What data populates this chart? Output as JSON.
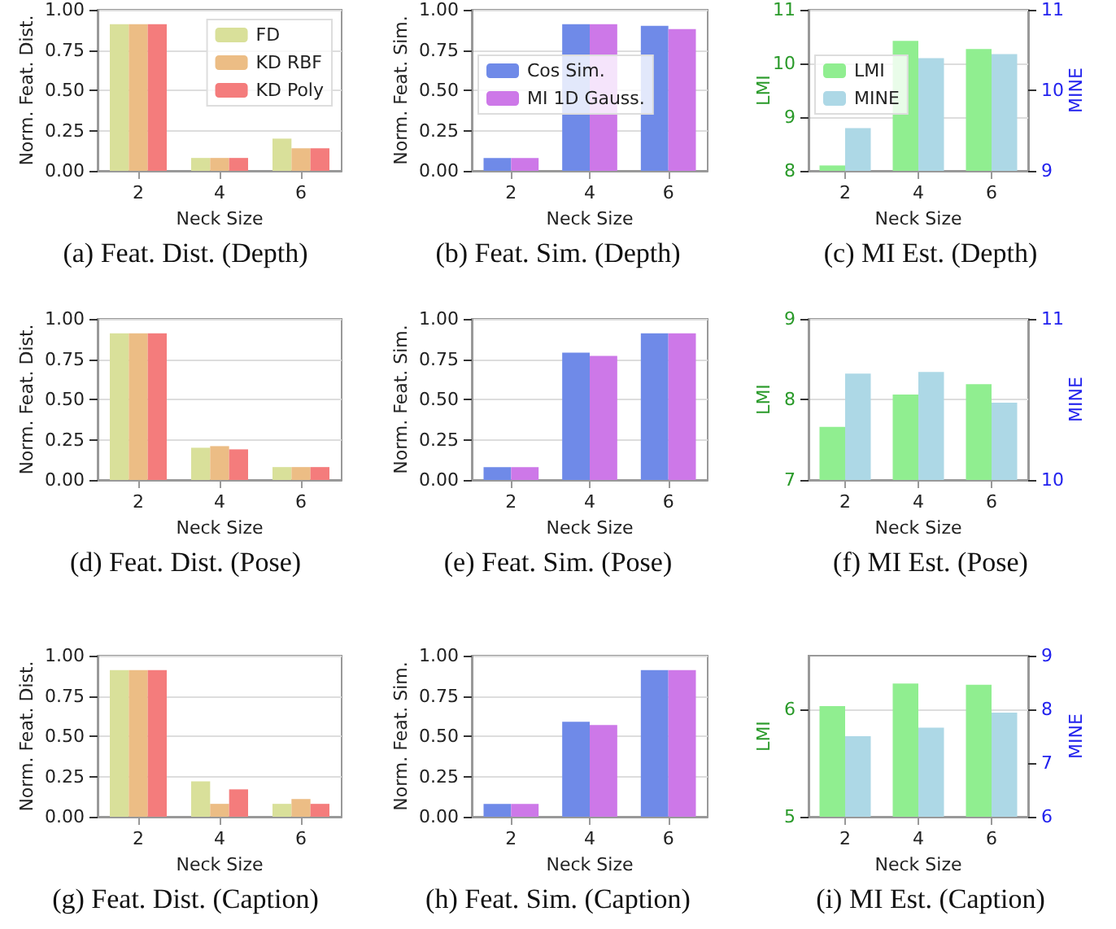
{
  "chart_data": [
    {
      "type": "bar",
      "title": "(a) Feat. Dist. (Depth)",
      "xlabel": "Neck Size",
      "ylabel": "Norm. Feat. Dist.",
      "categories": [
        "2",
        "4",
        "6"
      ],
      "legend": "top right",
      "grid": "y",
      "ylim": [
        0,
        1
      ],
      "yticks": [
        {
          "value": 0,
          "label": "0.00"
        },
        {
          "value": 0.25,
          "label": "0.25"
        },
        {
          "value": 0.5,
          "label": "0.50"
        },
        {
          "value": 0.75,
          "label": "0.75"
        },
        {
          "value": 1,
          "label": "1.00"
        }
      ],
      "series": [
        {
          "name": "FD",
          "color": "#d9e09a",
          "values": [
            0.91,
            0.08,
            0.2
          ]
        },
        {
          "name": "KD RBF",
          "color": "#ecbd85",
          "values": [
            0.91,
            0.08,
            0.14
          ]
        },
        {
          "name": "KD Poly",
          "color": "#f47c7c",
          "values": [
            0.91,
            0.08,
            0.14
          ]
        }
      ]
    },
    {
      "type": "bar",
      "title": "(b) Feat. Sim. (Depth)",
      "xlabel": "Neck Size",
      "ylabel": "Norm. Feat. Sim.",
      "categories": [
        "2",
        "4",
        "6"
      ],
      "legend": "left",
      "grid": "y",
      "ylim": [
        0,
        1
      ],
      "yticks": [
        {
          "value": 0,
          "label": "0.00"
        },
        {
          "value": 0.25,
          "label": "0.25"
        },
        {
          "value": 0.5,
          "label": "0.50"
        },
        {
          "value": 0.75,
          "label": "0.75"
        },
        {
          "value": 1,
          "label": "1.00"
        }
      ],
      "series": [
        {
          "name": "Cos Sim.",
          "color": "#6f8ae8",
          "values": [
            0.08,
            0.91,
            0.9
          ]
        },
        {
          "name": "MI 1D Gauss.",
          "color": "#cd78e8",
          "values": [
            0.08,
            0.91,
            0.88
          ]
        }
      ]
    },
    {
      "type": "bar",
      "title": "(c) MI Est. (Depth)",
      "xlabel": "Neck Size",
      "ylabel": "LMI",
      "y2label": "MINE",
      "categories": [
        "2",
        "4",
        "6"
      ],
      "legend": "left",
      "grid": "y",
      "ylim": [
        8,
        11
      ],
      "yticks": [
        8,
        9,
        10,
        11
      ],
      "y2lim": [
        9,
        11
      ],
      "y2ticks": [
        9,
        10,
        11
      ],
      "series": [
        {
          "name": "LMI",
          "color": "#90ee90",
          "values": [
            8.1,
            10.42,
            10.27
          ]
        },
        {
          "name": "MINE",
          "color": "#add8e6",
          "axis": "y2",
          "values": [
            9.53,
            10.4,
            10.45
          ]
        }
      ]
    },
    {
      "type": "bar",
      "title": "(d) Feat. Dist. (Pose)",
      "xlabel": "Neck Size",
      "ylabel": "Norm. Feat. Dist.",
      "categories": [
        "2",
        "4",
        "6"
      ],
      "grid": "y",
      "ylim": [
        0,
        1
      ],
      "yticks": [
        {
          "value": 0,
          "label": "0.00"
        },
        {
          "value": 0.25,
          "label": "0.25"
        },
        {
          "value": 0.5,
          "label": "0.50"
        },
        {
          "value": 0.75,
          "label": "0.75"
        },
        {
          "value": 1,
          "label": "1.00"
        }
      ],
      "series": [
        {
          "color": "#d9e09a",
          "values": [
            0.91,
            0.2,
            0.08
          ]
        },
        {
          "color": "#ecbd85",
          "values": [
            0.91,
            0.21,
            0.08
          ]
        },
        {
          "color": "#f47c7c",
          "values": [
            0.91,
            0.19,
            0.08
          ]
        }
      ]
    },
    {
      "type": "bar",
      "title": "(e) Feat. Sim. (Pose)",
      "xlabel": "Neck Size",
      "ylabel": "Norm. Feat. Sim.",
      "categories": [
        "2",
        "4",
        "6"
      ],
      "grid": "y",
      "ylim": [
        0,
        1
      ],
      "yticks": [
        {
          "value": 0,
          "label": "0.00"
        },
        {
          "value": 0.25,
          "label": "0.25"
        },
        {
          "value": 0.5,
          "label": "0.50"
        },
        {
          "value": 0.75,
          "label": "0.75"
        },
        {
          "value": 1,
          "label": "1.00"
        }
      ],
      "series": [
        {
          "color": "#6f8ae8",
          "values": [
            0.08,
            0.79,
            0.91
          ]
        },
        {
          "color": "#cd78e8",
          "values": [
            0.08,
            0.77,
            0.91
          ]
        }
      ]
    },
    {
      "type": "bar",
      "title": "(f) MI Est. (Pose)",
      "xlabel": "Neck Size",
      "ylabel": "LMI",
      "y2label": "MINE",
      "categories": [
        "2",
        "4",
        "6"
      ],
      "grid": "y",
      "ylim": [
        7,
        9
      ],
      "yticks": [
        7,
        8,
        9
      ],
      "y2lim": [
        10,
        11
      ],
      "y2ticks": [
        10,
        11
      ],
      "series": [
        {
          "color": "#90ee90",
          "values": [
            7.66,
            8.06,
            8.19
          ]
        },
        {
          "color": "#add8e6",
          "axis": "y2",
          "values": [
            10.66,
            10.67,
            10.48
          ]
        }
      ]
    },
    {
      "type": "bar",
      "title": "(g) Feat. Dist. (Caption)",
      "xlabel": "Neck Size",
      "ylabel": "Norm. Feat. Dist.",
      "categories": [
        "2",
        "4",
        "6"
      ],
      "grid": "y",
      "ylim": [
        0,
        1
      ],
      "yticks": [
        {
          "value": 0,
          "label": "0.00"
        },
        {
          "value": 0.25,
          "label": "0.25"
        },
        {
          "value": 0.5,
          "label": "0.50"
        },
        {
          "value": 0.75,
          "label": "0.75"
        },
        {
          "value": 1,
          "label": "1.00"
        }
      ],
      "series": [
        {
          "color": "#d9e09a",
          "values": [
            0.91,
            0.22,
            0.08
          ]
        },
        {
          "color": "#ecbd85",
          "values": [
            0.91,
            0.08,
            0.11
          ]
        },
        {
          "color": "#f47c7c",
          "values": [
            0.91,
            0.17,
            0.08
          ]
        }
      ]
    },
    {
      "type": "bar",
      "title": "(h) Feat. Sim. (Caption)",
      "xlabel": "Neck Size",
      "ylabel": "Norm. Feat. Sim.",
      "categories": [
        "2",
        "4",
        "6"
      ],
      "grid": "y",
      "ylim": [
        0,
        1
      ],
      "yticks": [
        {
          "value": 0,
          "label": "0.00"
        },
        {
          "value": 0.25,
          "label": "0.25"
        },
        {
          "value": 0.5,
          "label": "0.50"
        },
        {
          "value": 0.75,
          "label": "0.75"
        },
        {
          "value": 1,
          "label": "1.00"
        }
      ],
      "series": [
        {
          "color": "#6f8ae8",
          "values": [
            0.08,
            0.59,
            0.91
          ]
        },
        {
          "color": "#cd78e8",
          "values": [
            0.08,
            0.57,
            0.91
          ]
        }
      ]
    },
    {
      "type": "bar",
      "title": "(i) MI Est. (Caption)",
      "xlabel": "Neck Size",
      "ylabel": "LMI",
      "y2label": "MINE",
      "categories": [
        "2",
        "4",
        "6"
      ],
      "grid": "y",
      "ylim": [
        5,
        6.5
      ],
      "yticks": [
        5,
        6
      ],
      "y2lim": [
        6,
        9
      ],
      "y2ticks": [
        6,
        7,
        8,
        9
      ],
      "series": [
        {
          "color": "#90ee90",
          "values": [
            6.03,
            6.24,
            6.23
          ]
        },
        {
          "color": "#add8e6",
          "axis": "y2",
          "values": [
            7.5,
            7.66,
            7.94
          ]
        }
      ]
    }
  ]
}
